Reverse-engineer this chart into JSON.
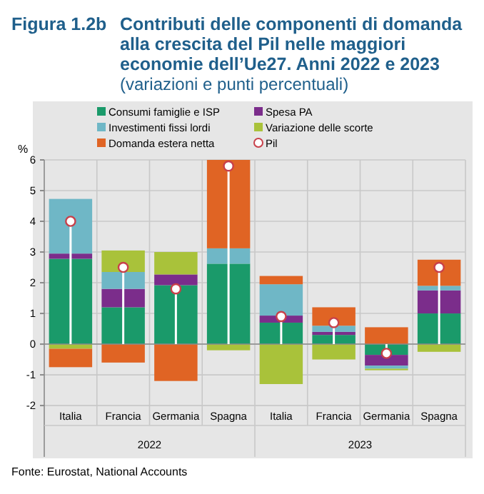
{
  "chart_data": {
    "type": "bar",
    "title": "Figura 1.2b Contributi delle componenti di domanda alla crescita del Pil nelle maggiori economie dell’Ue27. Anni 2022 e 2023",
    "subtitle": "(variazioni e punti percentuali)",
    "ylabel": "%",
    "categories": [
      "Italia",
      "Francia",
      "Germania",
      "Spagna",
      "Italia",
      "Francia",
      "Germania",
      "Spagna"
    ],
    "stacked": true,
    "series": [
      {
        "name": "Consumi famiglie e ISP",
        "color": "#1a9a6a",
        "values": [
          2.78,
          1.2,
          1.92,
          2.62,
          0.7,
          0.3,
          -0.35,
          1.0
        ]
      },
      {
        "name": "Spesa PA",
        "color": "#7b2d8b",
        "values": [
          0.17,
          0.6,
          0.35,
          0,
          0.23,
          0.1,
          -0.35,
          0.75
        ]
      },
      {
        "name": "Investimenti fissi lordi",
        "color": "#6fb7c6",
        "values": [
          1.78,
          0.55,
          0,
          0.5,
          1.02,
          0.2,
          -0.1,
          0.15
        ]
      },
      {
        "name": "Variazione delle scorte",
        "color": "#a9c23a",
        "values": [
          -0.15,
          0.7,
          0.73,
          -0.2,
          -1.3,
          -0.5,
          -0.05,
          -0.25
        ]
      },
      {
        "name": "Domanda estera netta",
        "color": "#e06424",
        "values": [
          -0.6,
          -0.6,
          -1.2,
          2.88,
          0.27,
          0.6,
          0.55,
          0.85
        ]
      },
      {
        "name": "Pil",
        "type": "scatter",
        "color": "#c8404a",
        "marker": "circle",
        "values": [
          4.0,
          2.5,
          1.8,
          5.8,
          0.9,
          0.7,
          -0.3,
          2.5
        ]
      }
    ],
    "ylim": [
      -2.3,
      6
    ],
    "yticks": [
      -2,
      -1,
      0,
      1,
      2,
      3,
      4,
      5,
      6
    ],
    "grid": "y",
    "legend": "top",
    "annotations": [
      "2022",
      "2023",
      "Fonte: Eurostat, National Accounts"
    ]
  }
}
